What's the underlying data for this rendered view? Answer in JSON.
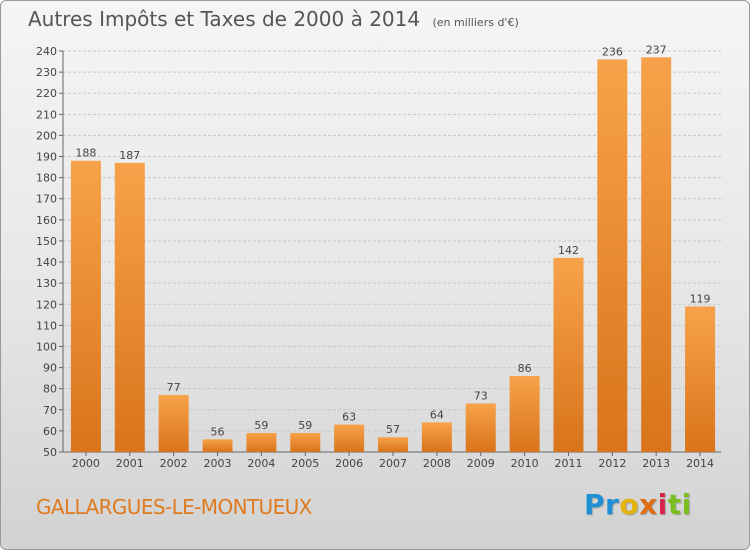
{
  "chart_data": {
    "type": "bar",
    "title": "Autres Impôts et Taxes de 2000 à 2014",
    "subtitle": "(en milliers d'€)",
    "categories": [
      "2000",
      "2001",
      "2002",
      "2003",
      "2004",
      "2005",
      "2006",
      "2007",
      "2008",
      "2009",
      "2010",
      "2011",
      "2012",
      "2013",
      "2014"
    ],
    "values": [
      188,
      187,
      77,
      56,
      59,
      59,
      63,
      57,
      64,
      73,
      86,
      142,
      236,
      237,
      119
    ],
    "ylim": [
      50,
      240
    ],
    "yticks": [
      50,
      60,
      70,
      80,
      90,
      100,
      110,
      120,
      130,
      140,
      150,
      160,
      170,
      180,
      190,
      200,
      210,
      220,
      230,
      240
    ],
    "grid": true,
    "bar_color_top": "#f7a24a",
    "bar_color_bottom": "#d9741a"
  },
  "footer": {
    "commune": "GALLARGUES-LE-MONTUEUX",
    "logo_parts": [
      "Pr",
      "o",
      "x",
      "i",
      "ti"
    ]
  },
  "colors": {
    "title": "#555555",
    "commune": "#e07a1f"
  }
}
